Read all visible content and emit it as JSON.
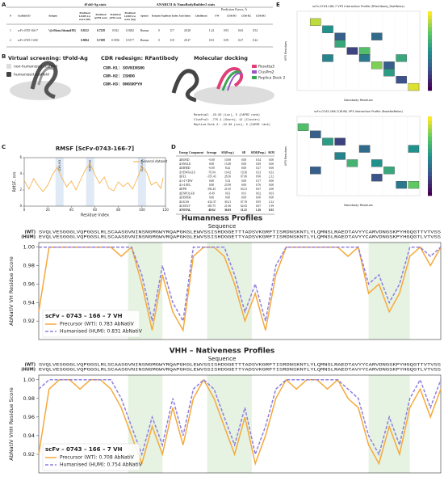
{
  "panel_labels": [
    "A",
    "B",
    "C",
    "D",
    "E"
  ],
  "table_a": {
    "group_headers": [
      "tFold-Ag stats",
      "ANARCII & NanoBodyBuilder2 stats",
      "Prediction Errors, Å"
    ],
    "headers": [
      "N",
      "Scaffold ID",
      "Antigen",
      "Predicted LDDT-Cα score (Nb)",
      "Predicted tpTM score",
      "Predicted pTM score",
      "Predicted LDDT-Cα score (Ag)",
      "Species",
      "Domain Type",
      "Start Index",
      "End Index",
      "Likelihood",
      "FW",
      "CDR-H1",
      "CDR-H2",
      "CDR-H3"
    ],
    "rows": [
      [
        "1",
        "scFv-0743-166-7",
        "Vp3 of Poliovirus 1 Sabin strain (HNE)",
        "0.9212",
        "0.7258",
        "0.922",
        "0.9282",
        "Human",
        "0",
        "117",
        "28.28",
        "1.22",
        "0.93",
        "0.63",
        "0.52"
      ],
      [
        "2",
        "scFv-0743-1-000",
        "",
        "0.9004",
        "0.7288",
        "0.9196",
        "0.9177",
        "Human",
        "0",
        "118",
        "29.27",
        "0.55",
        "0.59",
        "0.27",
        "0.24"
      ]
    ]
  },
  "panel_b": {
    "titles": [
      "Virtual screening: tFold-Ag",
      "CDR redesign: RFantibody",
      "Molecular docking"
    ],
    "scaffold_legend": [
      "non-humanized scaffold",
      "humanized scaffold"
    ],
    "cdrs": [
      "CDR-H1: SGVNINSNG",
      "CDR-H2: ISHDG",
      "CDR-H3: DNGSKPYH"
    ],
    "docking_legend": [
      {
        "name": "Rosetta3",
        "color": "#e0407a"
      },
      {
        "name": "ClusPro2",
        "color": "#9a55c8"
      },
      {
        "name": "Replica Dock 2",
        "color": "#3aa655"
      }
    ],
    "docking_scores": [
      "Rosetta3: -23.02 (Luc), 5 (CAPRI rank)",
      "ClusPro2: -775.1 (Score), 12 (Cluster)",
      "Replica Dock 2: -22.36 (Luc), 5 (CAPRI rank)"
    ]
  },
  "rmsf": {
    "type": "line",
    "title": "RMSF [ScFv-0743-166-7]",
    "x_label": "Residue Index",
    "y_label": "RMSF, nm",
    "xlim": [
      0,
      120
    ],
    "xticks": [
      0,
      20,
      40,
      60,
      80,
      100,
      120
    ],
    "ylim": [
      0,
      6
    ],
    "yticks": [
      0,
      2,
      4,
      6
    ],
    "x": [
      0,
      4,
      8,
      12,
      16,
      20,
      24,
      28,
      32,
      36,
      40,
      44,
      48,
      52,
      56,
      60,
      64,
      68,
      72,
      76,
      80,
      84,
      88,
      92,
      96,
      100,
      104,
      108,
      112,
      116,
      118
    ],
    "series": [
      {
        "name": "General dataset",
        "color": "#f5a93a",
        "values": [
          3.2,
          2.1,
          3.4,
          2.5,
          1.8,
          2.6,
          3.9,
          4.8,
          3.5,
          2.4,
          3.1,
          2.0,
          3.3,
          4.5,
          5.3,
          3.9,
          2.8,
          3.6,
          2.2,
          1.9,
          3.0,
          2.4,
          2.9,
          2.1,
          3.4,
          4.9,
          4.2,
          2.6,
          3.0,
          2.2,
          3.5
        ]
      }
    ],
    "annotations": [
      {
        "text": "CDR-H1",
        "x": 30
      },
      {
        "text": "CDR-H2",
        "x": 56
      },
      {
        "text": "CDR-H3",
        "x": 100
      }
    ]
  },
  "table_d": {
    "headers": [
      "Energy Component",
      "Average",
      "SD(Prop.)",
      "SD",
      "SEM(Prop.)",
      "SEM"
    ],
    "rows": [
      [
        "ΔBOND",
        "-0.00",
        "10.69",
        "0.00",
        "0.34",
        "0.00"
      ],
      [
        "ΔANGLE",
        "0.00",
        "15.49",
        "0.00",
        "0.49",
        "0.00"
      ],
      [
        "ΔDIHED",
        "-0.00",
        "8.42",
        "0.00",
        "0.27",
        "0.00"
      ],
      [
        "ΔVDWAALS",
        "-76.94",
        "10.42",
        "10.30",
        "0.33",
        "0.33"
      ],
      [
        "ΔEEL",
        "-355.43",
        "28.36",
        "67.06",
        "0.90",
        "2.12"
      ],
      [
        "Δ1-4 VDW",
        "0.00",
        "5.34",
        "0.00",
        "0.17",
        "0.00"
      ],
      [
        "Δ1-4 EEL",
        "0.00",
        "23.99",
        "0.00",
        "0.76",
        "0.00"
      ],
      [
        "ΔEPB",
        "392.43",
        "21.05",
        "63.21",
        "0.67",
        "2.00"
      ],
      [
        "ΔENPOLAR",
        "-8.49",
        "0.63",
        "0.91",
        "0.02",
        "0.03"
      ],
      [
        "ΔDISPER",
        "0.00",
        "0.00",
        "0.00",
        "0.00",
        "0.00"
      ],
      [
        "ΔGGAS",
        "-432.37",
        "30.21",
        "67.19",
        "0.95",
        "2.12"
      ],
      [
        "ΔGSOLV",
        "383.75",
        "21.06",
        "62.63",
        "0.67",
        "1.99"
      ],
      [
        "ΔTOTAL",
        "-48.62",
        "36.03",
        "11.21",
        "1.16",
        "0.35"
      ]
    ]
  },
  "heatmaps": [
    {
      "title": "scFv-0743-166-7 VP3 Interaction Profile (RFantibody_FastRelax)",
      "x_label": "Nanobody Residues",
      "y_label": "VP3 Residues",
      "cells": [
        [
          1,
          1,
          0.9
        ],
        [
          2,
          2,
          0.5
        ],
        [
          3,
          3,
          0.3
        ],
        [
          3,
          4,
          0.6
        ],
        [
          4,
          5,
          0.2
        ],
        [
          5,
          5,
          0.7
        ],
        [
          5,
          6,
          0.4
        ],
        [
          6,
          7,
          0.8
        ],
        [
          7,
          7,
          0.3
        ],
        [
          7,
          8,
          0.55
        ],
        [
          8,
          9,
          0.25
        ],
        [
          9,
          10,
          0.95
        ],
        [
          2,
          6,
          0.45
        ],
        [
          6,
          3,
          0.35
        ],
        [
          8,
          6,
          0.6
        ]
      ]
    },
    {
      "title": "scFv-0743-166-7(HUM) VP3 Interaction Profile (RosettaRelax)",
      "x_label": "Nanobody Residues",
      "y_label": "VP3 Residues",
      "cells": [
        [
          0,
          1,
          0.7
        ],
        [
          1,
          2,
          0.3
        ],
        [
          2,
          3,
          0.55
        ],
        [
          3,
          3,
          0.2
        ],
        [
          3,
          5,
          0.45
        ],
        [
          4,
          6,
          0.65
        ],
        [
          5,
          4,
          0.35
        ],
        [
          6,
          6,
          0.5
        ],
        [
          6,
          8,
          0.25
        ],
        [
          7,
          7,
          0.6
        ],
        [
          8,
          9,
          0.4
        ],
        [
          9,
          9,
          0.75
        ],
        [
          1,
          7,
          0.3
        ],
        [
          9,
          4,
          0.5
        ]
      ]
    }
  ],
  "profiles": [
    {
      "type": "line",
      "title": "Humanness Profiles",
      "subtitle": "Sequence",
      "wt_tag": "(WT)",
      "hum_tag": "(HUM)",
      "seq_wt": "SVQLVESGGGLVQPGGSLRLSCAASGVNINSNGMGWYRQAPGKGLEWVSSISHDGGETTTADSVKGRFTISRDNSKNTLYLQMNSLRAEDTAVYYCARVDNGSKPYHGQGTTVTVSS",
      "seq_hum": "EVQLVESGGGLVQPGGSLRLSCAASGVNINSNGMGWVRQAPGKGLEWVSSISHDGGETTYADSVKGRFTISRDNSKNTLYLQMNSLRAEDTAVYYCARVDNGSKPYHGQGTLVTVSS",
      "y_label": "AbNatiV VH Residue Score",
      "legend_title": "scFv – 0743 – 166 – 7 VH",
      "xlim": [
        0,
        117
      ],
      "ylim": [
        0.9,
        1.005
      ],
      "yticks": [
        0.92,
        0.94,
        0.96,
        0.98,
        {
          "value": 1,
          "label": "1.00"
        }
      ],
      "cdr_regions": [
        [
          26,
          36
        ],
        [
          49,
          62
        ],
        [
          96,
          108
        ]
      ],
      "x": [
        0,
        3,
        6,
        9,
        12,
        15,
        18,
        21,
        24,
        27,
        30,
        33,
        36,
        39,
        42,
        45,
        48,
        51,
        54,
        57,
        60,
        63,
        66,
        69,
        72,
        75,
        78,
        81,
        84,
        87,
        90,
        93,
        96,
        99,
        102,
        105,
        108,
        111,
        114,
        117
      ],
      "series": [
        {
          "name": "Precursor (WT): 0.783 AbNatiV",
          "color": "#f5a93a",
          "dash": false,
          "values": [
            0.93,
            1.0,
            1.0,
            1.0,
            1.0,
            1.0,
            1.0,
            1.0,
            0.99,
            1.0,
            0.96,
            0.91,
            0.97,
            0.93,
            0.91,
            0.99,
            1.0,
            1.0,
            0.99,
            0.96,
            0.92,
            0.95,
            0.91,
            0.97,
            1.0,
            1.0,
            1.0,
            1.0,
            1.0,
            1.0,
            0.99,
            1.0,
            0.95,
            0.96,
            0.93,
            0.95,
            0.99,
            1.0,
            0.98,
            1.0
          ]
        },
        {
          "name": "Humanised (HUM): 0.831 AbNatiV",
          "color": "#8f7fe0",
          "dash": true,
          "values": [
            1.0,
            1.0,
            1.0,
            1.0,
            1.0,
            1.0,
            1.0,
            1.0,
            1.0,
            1.0,
            0.97,
            0.92,
            0.98,
            0.94,
            0.92,
            1.0,
            1.0,
            1.0,
            1.0,
            0.97,
            0.93,
            0.96,
            0.92,
            0.98,
            1.0,
            1.0,
            1.0,
            1.0,
            1.0,
            1.0,
            1.0,
            1.0,
            0.96,
            0.97,
            0.94,
            0.96,
            1.0,
            1.0,
            0.99,
            1.0
          ]
        }
      ]
    },
    {
      "type": "line",
      "title": "VHH – Nativeness Profiles",
      "subtitle": "Sequence",
      "wt_tag": "(WT)",
      "hum_tag": "(HUM)",
      "seq_wt": "SVQLVESGGGLVQPGGSLRLSCAASGVNINSNGMGWYRQAPGKGLEWVSSISHDGGETTTADSVKGRFTISRDNSKNTLYLQMNSLRAEDTAVYYCARVDNGSKPYHGQGTTVTVSS",
      "seq_hum": "EVQLVESGGGLVQPGGSLRLSCAASGVNINSNGMGWVRQAPGKGLEWVSSISHDGGETTYADSVKGRFTISRDNSKNTLYLQMNSLRAEDTAVYYCARVDNGSKPYHGQGTLVTVSS",
      "y_label": "AbNatiV VHH Residue Score",
      "legend_title": "scFv – 0743 – 166 – 7 VH",
      "xlim": [
        0,
        117
      ],
      "ylim": [
        0.9,
        1.005
      ],
      "yticks": [
        0.92,
        0.94,
        0.96,
        0.98,
        {
          "value": 1,
          "label": "1.00"
        }
      ],
      "cdr_regions": [
        [
          26,
          36
        ],
        [
          49,
          62
        ],
        [
          96,
          108
        ]
      ],
      "x": [
        0,
        3,
        6,
        9,
        12,
        15,
        18,
        21,
        24,
        27,
        30,
        33,
        36,
        39,
        42,
        45,
        48,
        51,
        54,
        57,
        60,
        63,
        66,
        69,
        72,
        75,
        78,
        81,
        84,
        87,
        90,
        93,
        96,
        99,
        102,
        105,
        108,
        111,
        114,
        117
      ],
      "series": [
        {
          "name": "Precursor (WT): 0.708 AbNatiV",
          "color": "#f5a93a",
          "dash": false,
          "values": [
            0.92,
            0.99,
            1.0,
            1.0,
            0.99,
            1.0,
            1.0,
            0.99,
            0.97,
            0.94,
            0.91,
            0.95,
            0.92,
            0.97,
            0.93,
            0.98,
            1.0,
            0.98,
            0.95,
            0.92,
            0.96,
            0.91,
            0.94,
            0.98,
            1.0,
            0.99,
            1.0,
            1.0,
            0.99,
            1.0,
            0.98,
            0.97,
            0.93,
            0.91,
            0.95,
            0.92,
            0.97,
            0.99,
            0.96,
            0.99
          ]
        },
        {
          "name": "Humanised (HUM): 0.754 AbNatiV",
          "color": "#8f7fe0",
          "dash": true,
          "values": [
            0.99,
            1.0,
            1.0,
            1.0,
            1.0,
            1.0,
            1.0,
            1.0,
            0.98,
            0.95,
            0.92,
            0.96,
            0.93,
            0.98,
            0.94,
            0.99,
            1.0,
            0.99,
            0.96,
            0.93,
            0.97,
            0.92,
            0.95,
            0.99,
            1.0,
            1.0,
            1.0,
            1.0,
            1.0,
            1.0,
            0.99,
            0.98,
            0.94,
            0.92,
            0.96,
            0.93,
            0.98,
            1.0,
            0.97,
            1.0
          ]
        }
      ]
    }
  ]
}
